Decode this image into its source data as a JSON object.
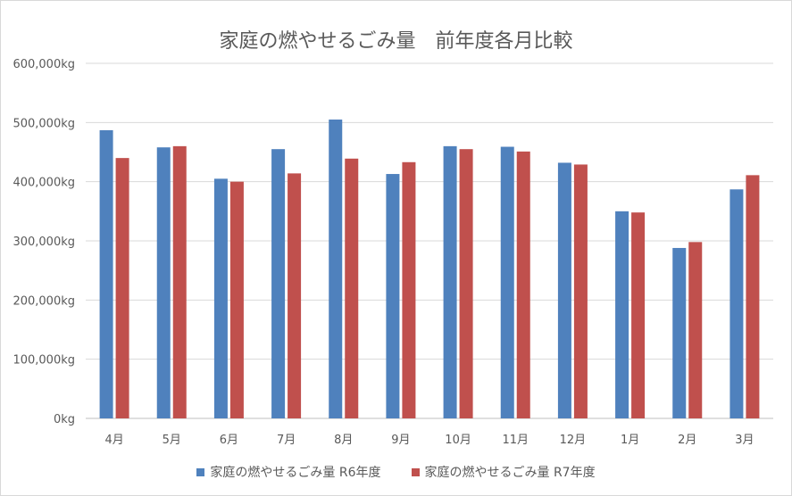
{
  "chart_data": {
    "type": "bar",
    "title": "家庭の燃やせるごみ量　前年度各月比較",
    "categories": [
      "4月",
      "5月",
      "6月",
      "7月",
      "8月",
      "9月",
      "10月",
      "11月",
      "12月",
      "1月",
      "2月",
      "3月"
    ],
    "series": [
      {
        "name": "家庭の燃やせるごみ量 R6年度",
        "color": "#4f81bd",
        "values": [
          487000,
          458000,
          405000,
          455000,
          505000,
          413000,
          460000,
          459000,
          432000,
          350000,
          288000,
          387000
        ]
      },
      {
        "name": "家庭の燃やせるごみ量 R7年度",
        "color": "#c0504d",
        "values": [
          440000,
          460000,
          400000,
          414000,
          439000,
          433000,
          455000,
          451000,
          429000,
          348000,
          298000,
          411000
        ]
      }
    ],
    "ylim": [
      0,
      600000
    ],
    "yticks": [
      0,
      100000,
      200000,
      300000,
      400000,
      500000,
      600000
    ],
    "ytick_labels": [
      "0kg",
      "100,000kg",
      "200,000kg",
      "300,000kg",
      "400,000kg",
      "500,000kg",
      "600,000kg"
    ],
    "grid": true,
    "legend": "bottom"
  }
}
